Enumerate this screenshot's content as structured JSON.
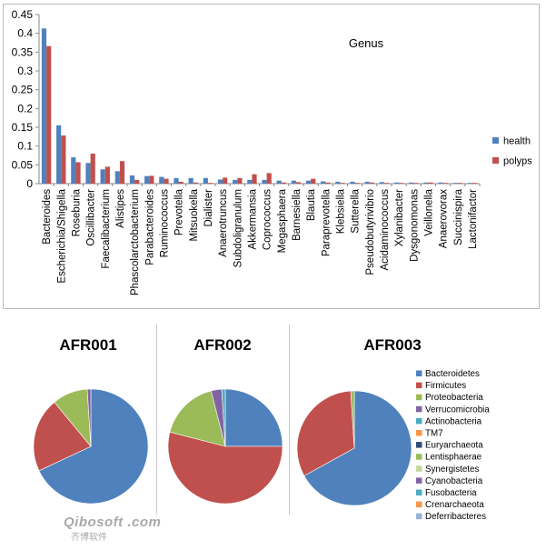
{
  "colors": {
    "health": "#4f81bd",
    "polyps": "#c0504d",
    "axis": "#888888",
    "frame": "#bbbbbb",
    "text": "#000000"
  },
  "chart_data": [
    {
      "type": "bar",
      "title": "Genus",
      "ylim": [
        0,
        0.45
      ],
      "yticks": [
        "0",
        "0.05",
        "0.1",
        "0.15",
        "0.2",
        "0.25",
        "0.3",
        "0.35",
        "0.4",
        "0.45"
      ],
      "legend_position": "right",
      "categories": [
        "Bacteroides",
        "Escherichia/Shigella",
        "Roseburia",
        "Oscillibacter",
        "Faecalibacterium",
        "Alistipes",
        "Phascolarctobacterium",
        "Parabacteroides",
        "Ruminococcus",
        "Prevotella",
        "Mitsuokella",
        "Dialister",
        "Anaerotruncus",
        "Subdoligranulum",
        "Akkermansia",
        "Coprococcus",
        "Megasphaera",
        "Barnesiella",
        "Blautia",
        "Paraprevotella",
        "Klebsiella",
        "Sutterella",
        "Pseudobutyrivibrio",
        "Acidaminococcus",
        "Xylanibacter",
        "Dysgonomonas",
        "Veillonella",
        "Anaerovorax",
        "Succinispira",
        "Lactonifactor"
      ],
      "series": [
        {
          "name": "health",
          "color": "#4f81bd",
          "values": [
            0.413,
            0.155,
            0.07,
            0.055,
            0.038,
            0.033,
            0.022,
            0.02,
            0.018,
            0.015,
            0.015,
            0.015,
            0.011,
            0.01,
            0.01,
            0.01,
            0.008,
            0.008,
            0.008,
            0.006,
            0.005,
            0.005,
            0.005,
            0.004,
            0.003,
            0.003,
            0.003,
            0.003,
            0.002,
            0.002
          ]
        },
        {
          "name": "polyps",
          "color": "#c0504d",
          "values": [
            0.366,
            0.128,
            0.057,
            0.08,
            0.045,
            0.06,
            0.01,
            0.021,
            0.013,
            0.005,
            0.003,
            0.002,
            0.016,
            0.015,
            0.025,
            0.028,
            0.003,
            0.004,
            0.013,
            0.003,
            0.002,
            0.002,
            0.003,
            0.002,
            0.002,
            0.002,
            0.003,
            0.002,
            0.002,
            0.002
          ]
        }
      ]
    },
    {
      "type": "pie",
      "title": "AFR001",
      "categories": [
        "Bacteroidetes",
        "Firmicutes",
        "Proteobacteria",
        "Verrucomicrobia"
      ],
      "values": [
        68,
        21,
        10,
        1
      ],
      "colors": [
        "#4f81bd",
        "#c0504d",
        "#9bbb59",
        "#8064a2"
      ]
    },
    {
      "type": "pie",
      "title": "AFR002",
      "categories": [
        "Bacteroidetes",
        "Firmicutes",
        "Proteobacteria",
        "Verrucomicrobia",
        "Actinobacteria"
      ],
      "values": [
        25,
        54,
        17,
        3,
        1
      ],
      "colors": [
        "#4f81bd",
        "#c0504d",
        "#9bbb59",
        "#8064a2",
        "#4bacc6"
      ]
    },
    {
      "type": "pie",
      "title": "AFR003",
      "categories": [
        "Bacteroidetes",
        "Firmicutes",
        "Proteobacteria"
      ],
      "values": [
        67,
        32,
        1
      ],
      "colors": [
        "#4f81bd",
        "#c0504d",
        "#9bbb59"
      ]
    }
  ],
  "phylum_legend": [
    {
      "label": "Bacteroidetes",
      "color": "#4f81bd"
    },
    {
      "label": "Firmicutes",
      "color": "#c0504d"
    },
    {
      "label": "Proteobacteria",
      "color": "#9bbb59"
    },
    {
      "label": "Verrucomicrobia",
      "color": "#8064a2"
    },
    {
      "label": "Actinobacteria",
      "color": "#4bacc6"
    },
    {
      "label": "TM7",
      "color": "#f79646"
    },
    {
      "label": "Euryarchaeota",
      "color": "#2c4d75"
    },
    {
      "label": "Lentisphaerae",
      "color": "#9bbb59"
    },
    {
      "label": "Synergistetes",
      "color": "#c3d69b"
    },
    {
      "label": "Cyanobacteria",
      "color": "#8064a2"
    },
    {
      "label": "Fusobacteria",
      "color": "#4bacc6"
    },
    {
      "label": "Crenarchaeota",
      "color": "#f79646"
    },
    {
      "label": "Deferribacteres",
      "color": "#95b3d7"
    }
  ],
  "watermark": {
    "brand": "Qibosoft .com",
    "sub": "齐博软件"
  }
}
